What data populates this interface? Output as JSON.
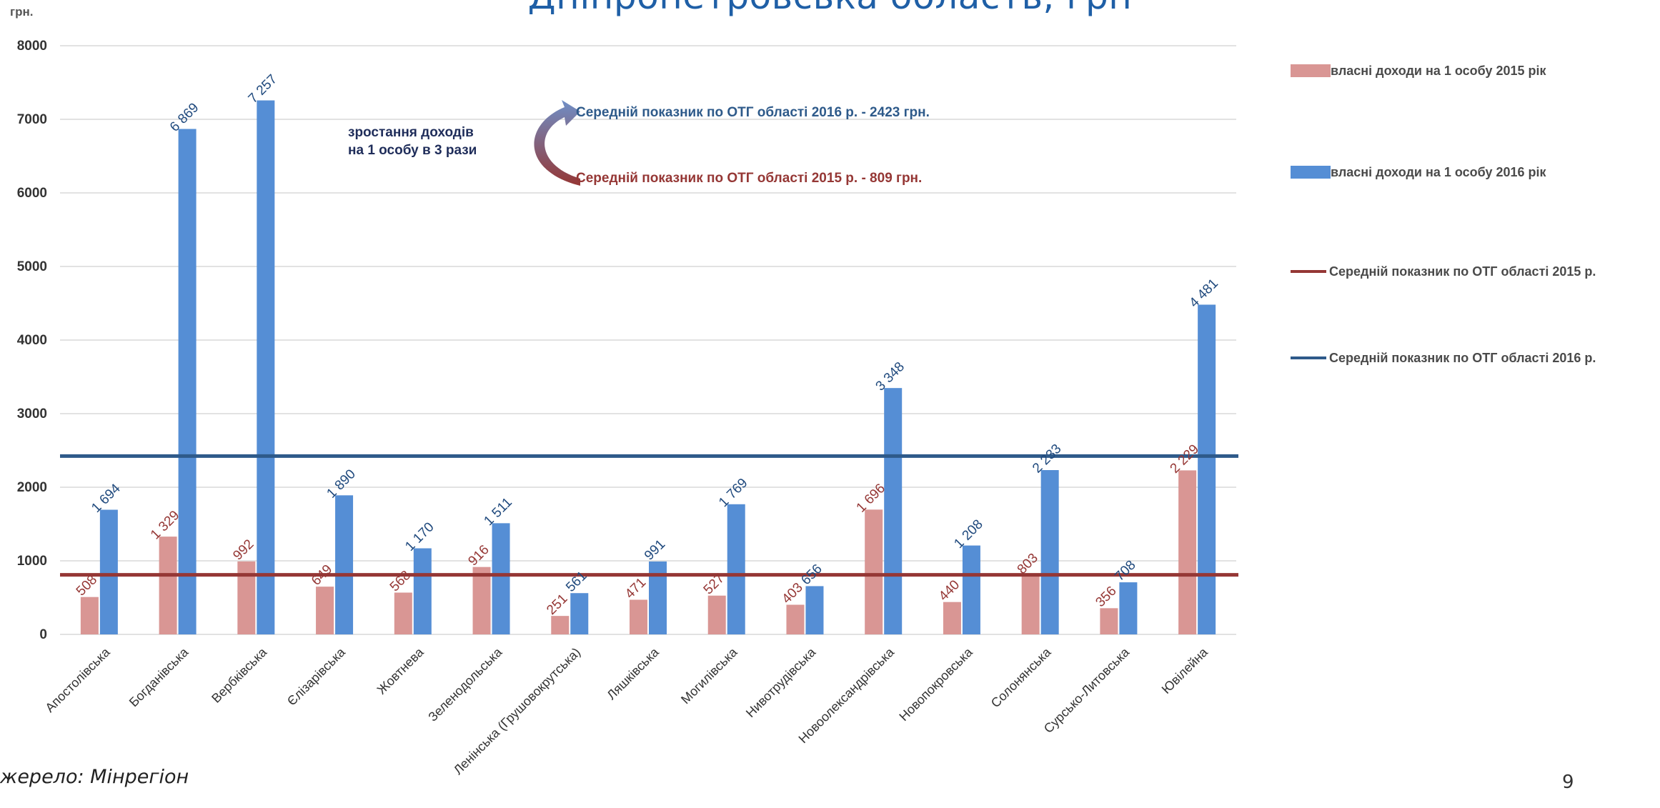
{
  "slide": {
    "title": "Дніпропетровська область, грн",
    "source": "жерело: Мінрегіон",
    "page_number": "9"
  },
  "chart_data": {
    "type": "bar",
    "yunit": "грн.",
    "ylim": [
      0,
      8000
    ],
    "yticks": [
      0,
      1000,
      2000,
      3000,
      4000,
      5000,
      6000,
      7000,
      8000
    ],
    "grid": true,
    "legend_position": "right",
    "categories": [
      "Апостолівська",
      "Богданівська",
      "Вербківська",
      "Єлізарівська",
      "Жовтнева",
      "Зеленодольська",
      "Ленінська (Грушовокрутська)",
      "Ляшківська",
      "Могилівська",
      "Нивотрудівська",
      "Новоолександрівська",
      "Новопокровська",
      "Солонянська",
      "Сурсько-Литовська",
      "Ювілейна"
    ],
    "series": [
      {
        "name": "власні доходи на 1 особу 2015 рік",
        "color": "#d99694",
        "values": [
          508,
          1329,
          992,
          649,
          568,
          916,
          251,
          471,
          527,
          403,
          1696,
          440,
          803,
          356,
          2229
        ],
        "labels": [
          "508",
          "1 329",
          "992",
          "649",
          "568",
          "916",
          "251",
          "471",
          "527",
          "403",
          "1 696",
          "440",
          "803",
          "356",
          "2 229"
        ],
        "label_color": "#953735"
      },
      {
        "name": "власні доходи на 1 особу 2016 рік",
        "color": "#558ed5",
        "values": [
          1694,
          6869,
          7257,
          1890,
          1170,
          1511,
          561,
          991,
          1769,
          656,
          3348,
          1208,
          2233,
          708,
          4481
        ],
        "labels": [
          "1 694",
          "6 869",
          "7 257",
          "1 890",
          "1 170",
          "1 511",
          "561",
          "991",
          "1 769",
          "656",
          "3 348",
          "1 208",
          "2 233",
          "708",
          "4 481"
        ],
        "label_color": "#1f497d"
      }
    ],
    "reference_lines": [
      {
        "name": "Середній показник по ОТГ області 2015 р.",
        "value": 809,
        "color": "#953735"
      },
      {
        "name": "Середній показник по ОТГ області 2016 р.",
        "value": 2423,
        "color": "#2e5a8a"
      }
    ],
    "annotations": {
      "growth_line1": "зростання доходів",
      "growth_line2": "на 1 особу в 3 рази",
      "avg_2016": "Середній показник по ОТГ області 2016 р. - 2423 грн.",
      "avg_2015": "Середній показник по ОТГ області 2015 р. - 809 грн."
    }
  }
}
